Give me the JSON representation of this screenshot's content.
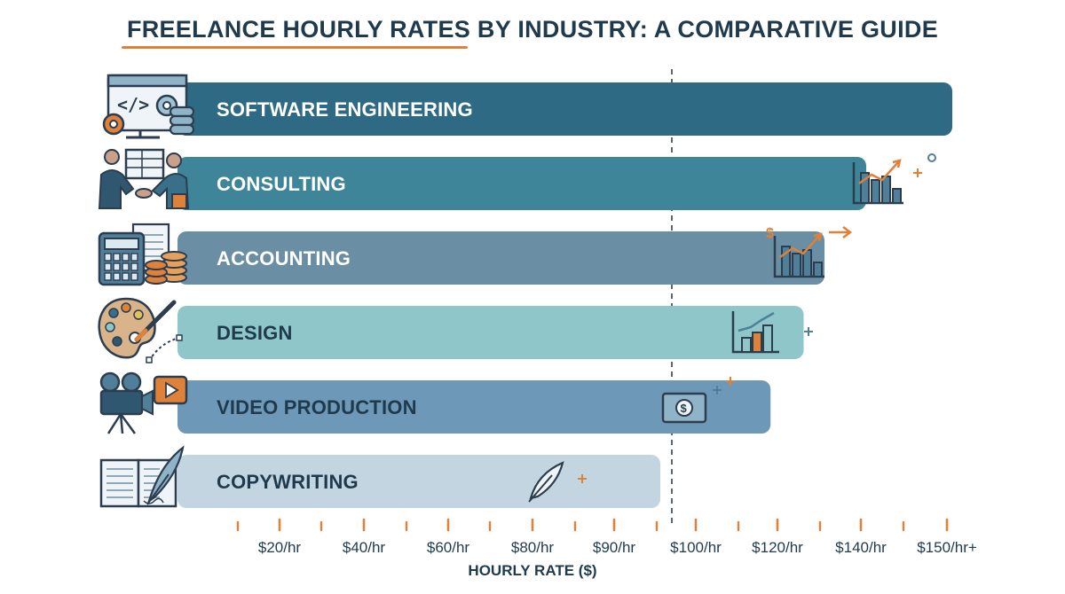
{
  "chart_data": {
    "type": "bar",
    "orientation": "horizontal",
    "title": "FREELANCE HOURLY RATES BY INDUSTRY: A COMPARATIVE GUIDE",
    "xlabel": "HOURLY RATE ($)",
    "ylabel": "",
    "categories": [
      "SOFTWARE ENGINEERING",
      "CONSULTING",
      "ACCOUNTING",
      "DESIGN",
      "VIDEO PRODUCTION",
      "COPYWRITING"
    ],
    "values": [
      150,
      140,
      130,
      125,
      117,
      95
    ],
    "x_ticks": [
      "$20/hr",
      "$40/hr",
      "$60/hr",
      "$80/hr",
      "$90/hr",
      "$100/hr",
      "$120/hr",
      "$140/hr",
      "$150/hr+"
    ],
    "reference_line": "$100/hr",
    "grid": false,
    "colors": [
      "#2f6a84",
      "#3f8599",
      "#6a8ea3",
      "#8fc6c9",
      "#6e98b8",
      "#c4d5e2"
    ],
    "label_colors": [
      "#ffffff",
      "#ffffff",
      "#ffffff",
      "#1f3a4d",
      "#1f3a4d",
      "#1f3a4d"
    ],
    "accent_color": "#e0813a",
    "icons": [
      "code-computer-gears-icon",
      "handshake-icon",
      "calculator-coins-icon",
      "palette-brush-icon",
      "video-camera-icon",
      "book-quill-icon"
    ],
    "decor_icons": [
      "growth-chart-icon",
      "dollar-growth-chart-icon",
      "bar-chart-icon",
      "money-bill-icon",
      "quill-icon"
    ]
  }
}
